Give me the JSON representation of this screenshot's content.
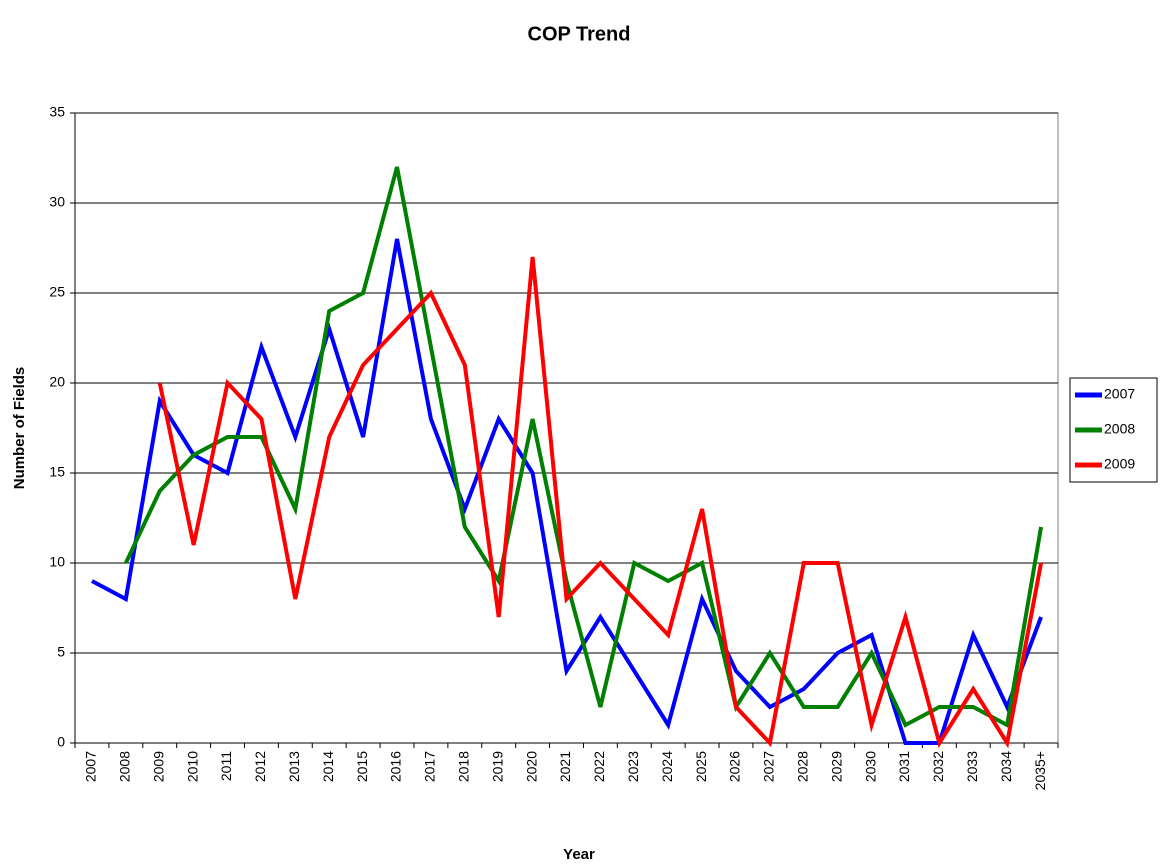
{
  "chart_data": {
    "type": "line",
    "title": "COP Trend",
    "x_label": "Year",
    "y_label": "Number of Fields",
    "categories": [
      "2007",
      "2008",
      "2009",
      "2010",
      "2011",
      "2012",
      "2013",
      "2014",
      "2015",
      "2016",
      "2017",
      "2018",
      "2019",
      "2020",
      "2021",
      "2022",
      "2023",
      "2024",
      "2025",
      "2026",
      "2027",
      "2028",
      "2029",
      "2030",
      "2031",
      "2032",
      "2033",
      "2034",
      "2035+"
    ],
    "series": [
      {
        "name": "2007",
        "color": "#0000ff",
        "values": [
          9,
          8,
          19,
          16,
          15,
          22,
          17,
          23,
          17,
          28,
          18,
          13,
          18,
          15,
          4,
          7,
          4,
          1,
          8,
          4,
          2,
          3,
          5,
          6,
          0,
          0,
          6,
          2,
          7
        ]
      },
      {
        "name": "2008",
        "color": "#008000",
        "values": [
          null,
          10,
          14,
          16,
          17,
          17,
          13,
          24,
          25,
          32,
          22,
          12,
          9,
          18,
          9,
          2,
          10,
          9,
          10,
          2,
          5,
          2,
          2,
          5,
          1,
          2,
          2,
          1,
          12
        ]
      },
      {
        "name": "2009",
        "color": "#ff0000",
        "values": [
          null,
          null,
          20,
          11,
          20,
          18,
          8,
          17,
          21,
          23,
          25,
          21,
          7,
          27,
          8,
          10,
          8,
          6,
          13,
          2,
          0,
          10,
          10,
          1,
          7,
          0,
          3,
          0,
          10
        ]
      }
    ],
    "ylim": [
      0,
      35
    ],
    "yticks": [
      0,
      5,
      10,
      15,
      20,
      25,
      30,
      35
    ],
    "grid": true,
    "legend": "right"
  }
}
